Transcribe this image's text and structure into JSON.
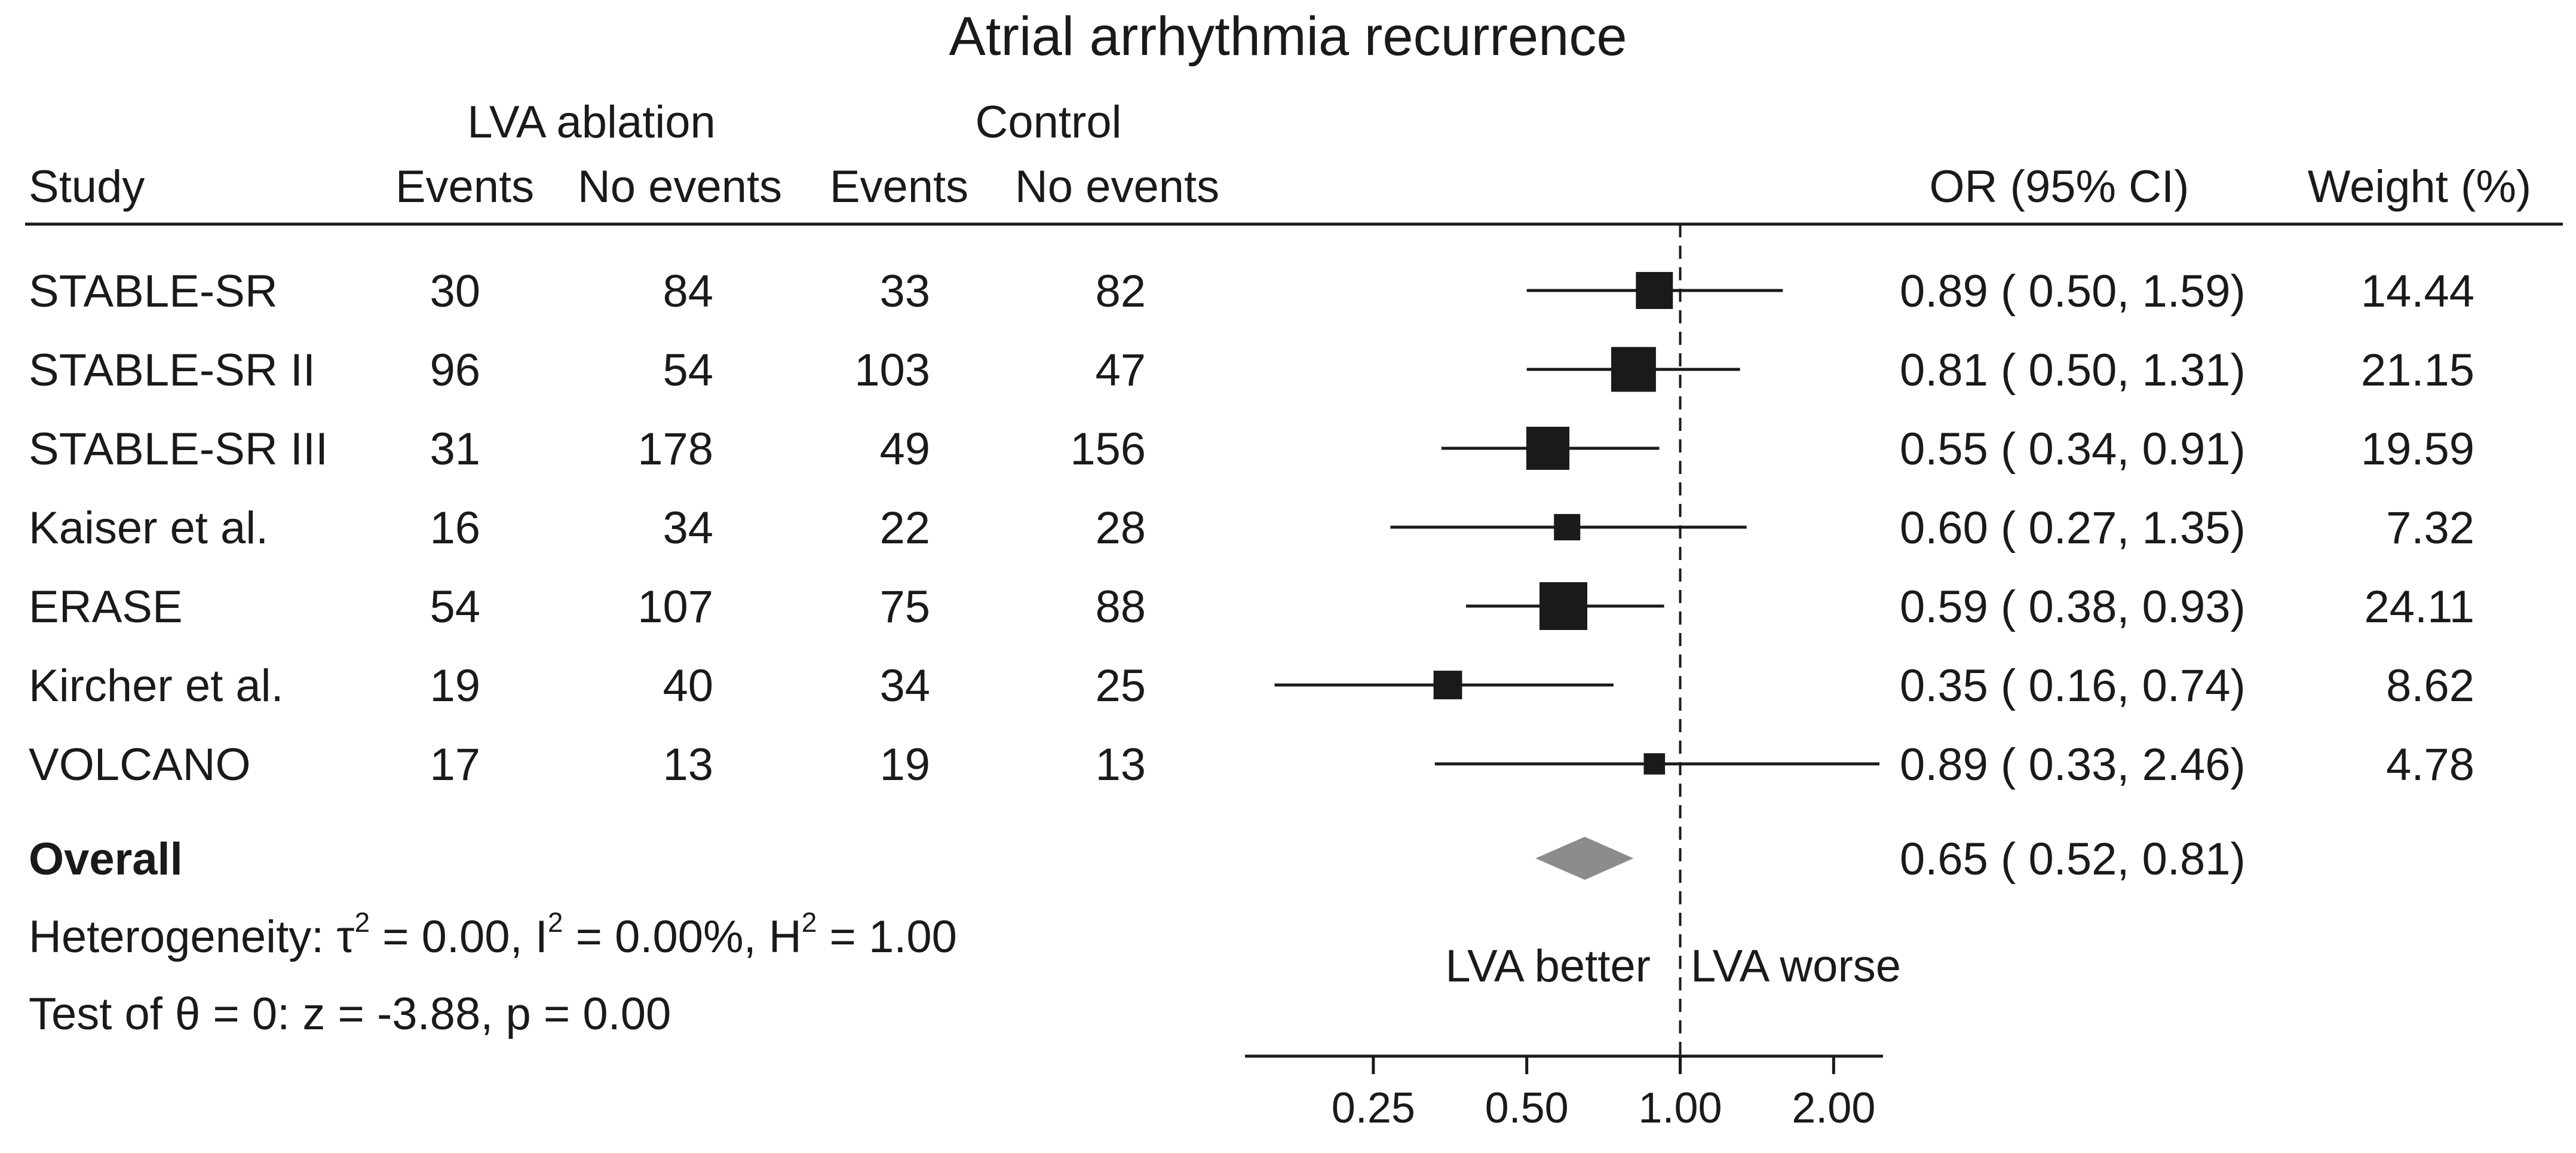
{
  "chart_data": {
    "type": "forest",
    "title": "Atrial arrhythmia recurrence",
    "scale": "log",
    "null_value": 1.0,
    "column_headers": {
      "study": "Study",
      "group1": "LVA ablation",
      "group2": "Control",
      "events": "Events",
      "no_events": "No events",
      "effect": "OR (95% CI)",
      "weight": "Weight (%)"
    },
    "studies": [
      {
        "name": "STABLE-SR",
        "e1": "30",
        "n1": "84",
        "e2": "33",
        "n2": "82",
        "or": 0.89,
        "lo": 0.5,
        "hi": 1.59,
        "ci_text": "0.89 ( 0.50,  1.59)",
        "weight": 14.44,
        "weight_text": "14.44"
      },
      {
        "name": "STABLE-SR II",
        "e1": "96",
        "n1": "54",
        "e2": "103",
        "n2": "47",
        "or": 0.81,
        "lo": 0.5,
        "hi": 1.31,
        "ci_text": "0.81 ( 0.50,  1.31)",
        "weight": 21.15,
        "weight_text": "21.15"
      },
      {
        "name": "STABLE-SR III",
        "e1": "31",
        "n1": "178",
        "e2": "49",
        "n2": "156",
        "or": 0.55,
        "lo": 0.34,
        "hi": 0.91,
        "ci_text": "0.55 ( 0.34,  0.91)",
        "weight": 19.59,
        "weight_text": "19.59"
      },
      {
        "name": "Kaiser et al.",
        "e1": "16",
        "n1": "34",
        "e2": "22",
        "n2": "28",
        "or": 0.6,
        "lo": 0.27,
        "hi": 1.35,
        "ci_text": "0.60 ( 0.27,  1.35)",
        "weight": 7.32,
        "weight_text": "7.32"
      },
      {
        "name": "ERASE",
        "e1": "54",
        "n1": "107",
        "e2": "75",
        "n2": "88",
        "or": 0.59,
        "lo": 0.38,
        "hi": 0.93,
        "ci_text": "0.59 ( 0.38,  0.93)",
        "weight": 24.11,
        "weight_text": "24.11"
      },
      {
        "name": "Kircher et al.",
        "e1": "19",
        "n1": "40",
        "e2": "34",
        "n2": "25",
        "or": 0.35,
        "lo": 0.16,
        "hi": 0.74,
        "ci_text": "0.35 ( 0.16,  0.74)",
        "weight": 8.62,
        "weight_text": "8.62"
      },
      {
        "name": "VOLCANO",
        "e1": "17",
        "n1": "13",
        "e2": "19",
        "n2": "13",
        "or": 0.89,
        "lo": 0.33,
        "hi": 2.46,
        "ci_text": "0.89 ( 0.33,  2.46)",
        "weight": 4.78,
        "weight_text": "4.78"
      }
    ],
    "overall": {
      "label": "Overall",
      "or": 0.65,
      "lo": 0.52,
      "hi": 0.81,
      "ci_text": "0.65 ( 0.52,  0.81)"
    },
    "heterogeneity": {
      "prefix": "Heterogeneity: τ",
      "tau_rest": " = 0.00, I",
      "i_rest": " = 0.00%, H",
      "h_rest": " = 1.00",
      "sup": "2"
    },
    "test": "Test of θ = 0: z = -3.88, p = 0.00",
    "favours_left": "LVA better",
    "favours_right": "LVA worse",
    "xaxis": {
      "min": 0.14,
      "max": 2.5,
      "ticks": [
        0.25,
        0.5,
        1.0,
        2.0
      ],
      "tick_labels": [
        "0.25",
        "0.50",
        "1.00",
        "2.00"
      ]
    },
    "colors": {
      "box": "#1a1a1a",
      "ci": "#1a1a1a",
      "diamond": "#8c8c8c",
      "text": "#1a1a1a"
    }
  }
}
